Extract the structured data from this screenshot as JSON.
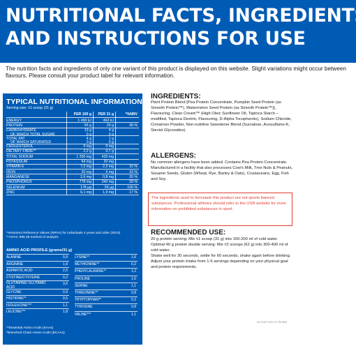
{
  "header": {
    "title_line1": "NUTRITIONAL FACTS, INGREDIENTS",
    "title_line2": "AND INSTRUCTIONS FOR USE"
  },
  "notice": "The nutrition facts and ingredients of only one variant of this product is displayed on this website. Slight variations might occur between flavours. Please consult your product label for relevant information.",
  "nutrition": {
    "title": "TYPICAL NUTRITIONAL INFORMATION",
    "serving": "Serving size: ±1 scoop (31 g)",
    "columns": [
      "PER 100 g",
      "PER 31 g",
      "*%NRV"
    ],
    "rows": [
      {
        "label": "ENERGY",
        "label2": "",
        "v1": "1 490 kJ",
        "v2": "462 kJ",
        "v3": "",
        "v1b": "",
        "v2b": ""
      },
      {
        "label": "PROTEIN",
        "label2": "",
        "v1": "65 g",
        "v2": "20 g",
        "v3": "36 %",
        "v1b": "",
        "v2b": ""
      },
      {
        "label": "CARBOHYDRATE",
        "label2": "OF WHICH TOTAL SUGAR",
        "v1": "13 g",
        "v2": "4 g",
        "v3": "",
        "v1b": "0 g",
        "v2b": "0 g"
      },
      {
        "label": "TOTAL FAT",
        "label2": "OF WHICH SATURATED",
        "v1": "4 g",
        "v2": "1 g",
        "v3": "",
        "v1b": "0 g",
        "v2b": "0 g"
      },
      {
        "label": "CHOLESTEROL",
        "label2": "",
        "v1": "0 mg",
        "v2": "0 mg",
        "v3": "",
        "v1b": "",
        "v2b": ""
      },
      {
        "label": "DIETARY FIBRE**",
        "label2": "",
        "v1": "2,2 g",
        "v2": "0,7 g",
        "v3": "",
        "v1b": "",
        "v2b": ""
      },
      {
        "label": "TOTAL SODIUM",
        "label2": "",
        "v1": "1 350 mg",
        "v2": "420 mg",
        "v3": "",
        "v1b": "",
        "v2b": ""
      },
      {
        "label": "POTASSIUM",
        "label2": "",
        "v1": "64 mg",
        "v2": "20 mg",
        "v3": "",
        "v1b": "",
        "v2b": ""
      },
      {
        "label": "VITAMIN E",
        "label2": "",
        "v1": "7,2 mg",
        "v2": "2,2 mg",
        "v3": "15 %",
        "v1b": "",
        "v2b": ""
      },
      {
        "label": "IRON",
        "label2": "",
        "v1": "20 mg",
        "v2": "6 mg",
        "v3": "33 %",
        "v1b": "",
        "v2b": ""
      },
      {
        "label": "MANGANESE",
        "label2": "",
        "v1": "2,6 mg",
        "v2": "0,8 mg",
        "v3": "35 %",
        "v1b": "",
        "v2b": ""
      },
      {
        "label": "PHOSPHORUS",
        "label2": "",
        "v1": "778 mg",
        "v2": "242 mg",
        "v3": "20 %",
        "v1b": "",
        "v2b": ""
      },
      {
        "label": "SELENIUM",
        "label2": "",
        "v1": "178 µg",
        "v2": "55 µg",
        "v3": "100 %",
        "v1b": "",
        "v2b": ""
      },
      {
        "label": "ZINC",
        "label2": "",
        "v1": "6,1 mg",
        "v2": "1,9 mg",
        "v3": "17 %",
        "v1b": "",
        "v2b": ""
      }
    ],
    "footnote": "*%Nutrient Reference Values (NRVs) for individuals 4 years and older (2010)\n**AOAC 985.29 method of analysis",
    "amino_title": "AMINO ACID PROFILE (grams/31 g)",
    "amino_left": [
      {
        "name": "ALANINE",
        "value": "0,9"
      },
      {
        "name": "ARGININE",
        "value": "1,8"
      },
      {
        "name": "ASPARTIC ACID",
        "value": "2,5"
      },
      {
        "name": "CYSTINE/CYSTEINE",
        "value": "0,2"
      },
      {
        "name": "GLUTAMINE/ GLUTAMIC ACID",
        "value": "3,6"
      },
      {
        "name": "GLYCINE",
        "value": "0,9"
      },
      {
        "name": "HISTIDINE**",
        "value": "0,5"
      },
      {
        "name": "ISOLEUCINE***",
        "value": "1,1"
      },
      {
        "name": "LEUCINE***",
        "value": "1,8"
      }
    ],
    "amino_right": [
      {
        "name": "LYSINE**",
        "value": "1,6"
      },
      {
        "name": "METHIONINE**",
        "value": "0,2"
      },
      {
        "name": "PHENYLALANINE**",
        "value": "1,2"
      },
      {
        "name": "PROLINE",
        "value": "1,0"
      },
      {
        "name": "SERINE",
        "value": "1,1"
      },
      {
        "name": "THREONINE**",
        "value": "0,8"
      },
      {
        "name": "TRYPTOPHAN**",
        "value": "0,2"
      },
      {
        "name": "TYROSINE",
        "value": "0,8"
      },
      {
        "name": "VALINE***",
        "value": "1,1"
      }
    ],
    "amino_footnote": "**Essential Amino Acids (EAAs)\n*Branched Chain Amino Acids (BCAAs)"
  },
  "ingredients": {
    "heading": "INGREDIENTS:",
    "text": "Plant Protein Blend [Pea Protein Concentrate, Pumpkin Seed Protein (as Smooth Protein™), Watermelon Seed Protein (as Smooth Protein™)], Flavouring, Clean Cream™ (High Oleic Sunflower Oil, Tapioca Starch – modified, Tapioca Dextrin, Flavouring, D-Alpha Tocopherols), Sodium Chloride, Cinnamon Powder, Non-nutritive Sweetener Blend (Sucralose, Acesulfame-K, Steviol Glycosides)."
  },
  "allergens": {
    "heading": "ALLERGENS:",
    "text": "No common allergens have been added. Contains Pea Protein Concentrate. Manufactured in a facility that also processes Cow's Milk, Tree Nuts & Peanuts, Sesame Seeds, Gluten (Wheat, Rye, Barley & Oats), Crustaceans, Egg, Fish and Soy."
  },
  "warning": "The ingredients used to formulate this product are not sports banned substances. Professional athletes should refer to the USN website for more information on prohibited substances in sport.",
  "recommended": {
    "heading": "RECOMMENDED USE:",
    "text": "20 g protein serving: Mix ±1 scoop (31 g) into 150-200 ml of cold water.\nOptimal 40 g protein double serving: Mix ±2 scoops (62 g) into 300-400 ml of cold water.\nShake well for 30 seconds, settle for 60 seconds, shake again before drinking.\nAdjust your protein intake from 1-5 servings depending on your physical goal and protein requirements."
  },
  "code": "NI-PLANT-2021-01 PNCR56",
  "colors": {
    "brand_blue": "#005bb5",
    "warning_red": "#e03c31"
  }
}
